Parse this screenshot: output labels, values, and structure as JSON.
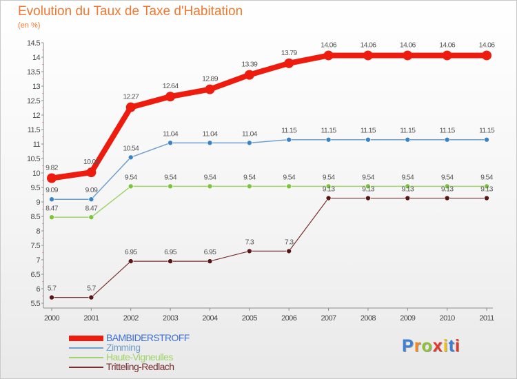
{
  "title": "Evolution du Taux de Taxe d'Habitation",
  "subtitle": "(en %)",
  "logo": {
    "text": "Proxiti",
    "letter_colors": [
      "#3a7fd8",
      "#f08a25",
      "#8cc43c",
      "#e0392d",
      "#f0c020",
      "#3a7fd8",
      "#e0392d"
    ]
  },
  "chart_data": {
    "type": "line",
    "title": "Evolution du Taux de Taxe d'Habitation",
    "ylabel": "(en %)",
    "xlabel": "",
    "x": [
      "2000",
      "2001",
      "2002",
      "2003",
      "2004",
      "2005",
      "2006",
      "2007",
      "2008",
      "2009",
      "2010",
      "2011"
    ],
    "ylim": [
      5.5,
      14.5
    ],
    "yticks": [
      "5.5",
      "6",
      "6.5",
      "7",
      "7.5",
      "8",
      "8.5",
      "9",
      "9.5",
      "10",
      "10.5",
      "11",
      "11.5",
      "12",
      "12.5",
      "13",
      "13.5",
      "14",
      "14.5"
    ],
    "grid": false,
    "legend_position": "bottom-left",
    "series": [
      {
        "name": "BAMBIDERSTROFF",
        "color": "#ee1c0e",
        "point_color": "#ee1c0e",
        "values": [
          9.82,
          10.02,
          12.27,
          12.64,
          12.89,
          13.39,
          13.79,
          14.06,
          14.06,
          14.06,
          14.06,
          14.06
        ],
        "labels": [
          "9.82",
          "10.02",
          "12.27",
          "12.64",
          "12.89",
          "13.39",
          "13.79",
          "14.06",
          "14.06",
          "14.06",
          "14.06",
          "14.06"
        ]
      },
      {
        "name": "Zimming",
        "color": "#6f9fcc",
        "point_color": "#3a84c6",
        "values": [
          9.09,
          9.09,
          10.54,
          11.04,
          11.04,
          11.04,
          11.15,
          11.15,
          11.15,
          11.15,
          11.15,
          11.15
        ],
        "labels": [
          "9.09",
          "9.09",
          "10.54",
          "11.04",
          "11.04",
          "11.04",
          "11.15",
          "11.15",
          "11.15",
          "11.15",
          "11.15",
          "11.15"
        ]
      },
      {
        "name": "Haute-Vigneulles",
        "color": "#9ed46a",
        "point_color": "#7cc43c",
        "values": [
          8.47,
          8.47,
          9.54,
          9.54,
          9.54,
          9.54,
          9.54,
          9.54,
          9.54,
          9.54,
          9.54,
          9.54
        ],
        "labels": [
          "8.47",
          "8.47",
          "9.54",
          "9.54",
          "9.54",
          "9.54",
          "9.54",
          "9.54",
          "9.54",
          "9.54",
          "9.54",
          "9.54"
        ]
      },
      {
        "name": "Tritteling-Redlach",
        "color": "#7a2f2f",
        "point_color": "#5a1616",
        "values": [
          5.7,
          5.7,
          6.95,
          6.95,
          6.95,
          7.3,
          7.3,
          9.13,
          9.13,
          9.13,
          9.13,
          9.13
        ],
        "labels": [
          "5.7",
          "5.7",
          "6.95",
          "6.95",
          "6.95",
          "7.3",
          "7.3",
          "9.13",
          "9.13",
          "9.13",
          "9.13",
          "9.13"
        ]
      }
    ]
  }
}
